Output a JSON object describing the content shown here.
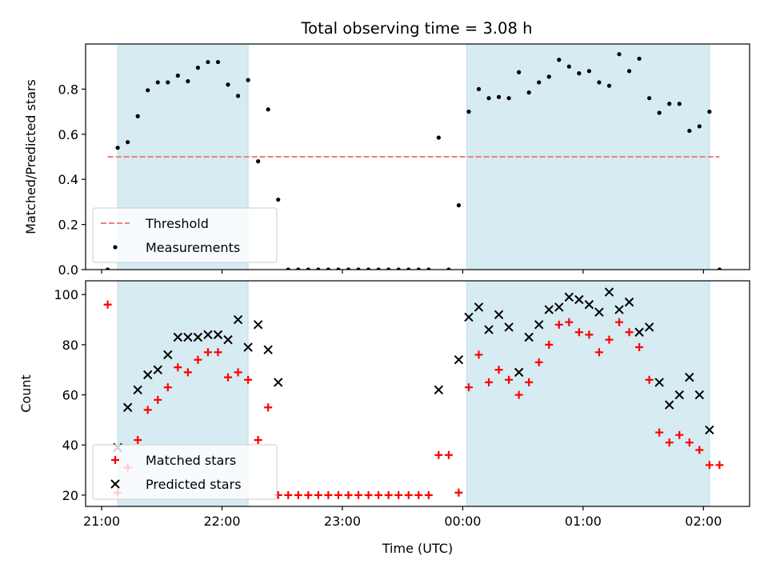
{
  "figure": {
    "title": "Total observing time = 3.08 h"
  },
  "chart_data": [
    {
      "type": "scatter",
      "name": "ratio-panel",
      "ylabel": "Matched/Predicted stars",
      "xlabel": "",
      "ylim": [
        0,
        1.0
      ],
      "xlim": [
        "20:52",
        "02:23"
      ],
      "x_axis": "time (UTC)",
      "yticks": [
        0.0,
        0.2,
        0.4,
        0.6,
        0.8
      ],
      "ytick_labels": [
        "0.0",
        "0.2",
        "0.4",
        "0.6",
        "0.8"
      ],
      "legend_placement": "lower-left",
      "shaded_intervals": [
        [
          "21:08",
          "22:13"
        ],
        [
          "00:02",
          "02:03"
        ]
      ],
      "shade_color": "#add8e6",
      "threshold": {
        "label": "Threshold",
        "value": 0.5,
        "x_range": [
          "21:03",
          "02:08"
        ],
        "color": "#f08080",
        "style": "dashed"
      },
      "series": [
        {
          "name": "Measurements",
          "color": "#000000",
          "marker": "dot",
          "points": [
            [
              "21:03",
              0.0
            ],
            [
              "21:08",
              0.54
            ],
            [
              "21:13",
              0.565
            ],
            [
              "21:18",
              0.68
            ],
            [
              "21:23",
              0.795
            ],
            [
              "21:28",
              0.83
            ],
            [
              "21:33",
              0.83
            ],
            [
              "21:38",
              0.86
            ],
            [
              "21:43",
              0.835
            ],
            [
              "21:48",
              0.895
            ],
            [
              "21:53",
              0.92
            ],
            [
              "21:58",
              0.92
            ],
            [
              "22:03",
              0.82
            ],
            [
              "22:08",
              0.77
            ],
            [
              "22:13",
              0.84
            ],
            [
              "22:18",
              0.48
            ],
            [
              "22:23",
              0.71
            ],
            [
              "22:28",
              0.31
            ],
            [
              "22:33",
              0.0
            ],
            [
              "22:38",
              0.0
            ],
            [
              "22:43",
              0.0
            ],
            [
              "22:48",
              0.0
            ],
            [
              "22:53",
              0.0
            ],
            [
              "22:58",
              0.0
            ],
            [
              "23:03",
              0.0
            ],
            [
              "23:08",
              0.0
            ],
            [
              "23:13",
              0.0
            ],
            [
              "23:18",
              0.0
            ],
            [
              "23:23",
              0.0
            ],
            [
              "23:28",
              0.0
            ],
            [
              "23:33",
              0.0
            ],
            [
              "23:38",
              0.0
            ],
            [
              "23:43",
              0.0
            ],
            [
              "23:48",
              0.585
            ],
            [
              "23:53",
              0.0
            ],
            [
              "23:58",
              0.285
            ],
            [
              "00:03",
              0.7
            ],
            [
              "00:08",
              0.8
            ],
            [
              "00:13",
              0.76
            ],
            [
              "00:18",
              0.765
            ],
            [
              "00:23",
              0.76
            ],
            [
              "00:28",
              0.875
            ],
            [
              "00:33",
              0.785
            ],
            [
              "00:38",
              0.83
            ],
            [
              "00:43",
              0.855
            ],
            [
              "00:48",
              0.93
            ],
            [
              "00:53",
              0.9
            ],
            [
              "00:58",
              0.87
            ],
            [
              "01:03",
              0.88
            ],
            [
              "01:08",
              0.83
            ],
            [
              "01:13",
              0.815
            ],
            [
              "01:18",
              0.955
            ],
            [
              "01:23",
              0.88
            ],
            [
              "01:28",
              0.935
            ],
            [
              "01:33",
              0.76
            ],
            [
              "01:38",
              0.695
            ],
            [
              "01:43",
              0.735
            ],
            [
              "01:48",
              0.735
            ],
            [
              "01:53",
              0.615
            ],
            [
              "01:58",
              0.635
            ],
            [
              "02:03",
              0.7
            ],
            [
              "02:08",
              0.0
            ]
          ]
        }
      ]
    },
    {
      "type": "scatter",
      "name": "count-panel",
      "ylabel": "Count",
      "xlabel": "Time (UTC)",
      "ylim": [
        15.5,
        105.5
      ],
      "xlim": [
        "20:52",
        "02:23"
      ],
      "x_axis": "time (UTC)",
      "xticks": [
        "21:00",
        "22:00",
        "23:00",
        "00:00",
        "01:00",
        "02:00"
      ],
      "xtick_labels": [
        "21:00",
        "22:00",
        "23:00",
        "00:00",
        "01:00",
        "02:00"
      ],
      "yticks": [
        20,
        40,
        60,
        80,
        100
      ],
      "ytick_labels": [
        "20",
        "40",
        "60",
        "80",
        "100"
      ],
      "legend_placement": "lower-left",
      "shaded_intervals": [
        [
          "21:08",
          "22:13"
        ],
        [
          "00:02",
          "02:03"
        ]
      ],
      "shade_color": "#add8e6",
      "series": [
        {
          "name": "Matched stars",
          "color": "#ff0000",
          "marker": "plus",
          "points": [
            [
              "21:03",
              96
            ],
            [
              "21:08",
              21
            ],
            [
              "21:13",
              31
            ],
            [
              "21:18",
              42
            ],
            [
              "21:23",
              54
            ],
            [
              "21:28",
              58
            ],
            [
              "21:33",
              63
            ],
            [
              "21:38",
              71
            ],
            [
              "21:43",
              69
            ],
            [
              "21:48",
              74
            ],
            [
              "21:53",
              77
            ],
            [
              "21:58",
              77
            ],
            [
              "22:03",
              67
            ],
            [
              "22:08",
              69
            ],
            [
              "22:13",
              66
            ],
            [
              "22:18",
              42
            ],
            [
              "22:23",
              55
            ],
            [
              "22:28",
              20
            ],
            [
              "22:33",
              20
            ],
            [
              "22:38",
              20
            ],
            [
              "22:43",
              20
            ],
            [
              "22:48",
              20
            ],
            [
              "22:53",
              20
            ],
            [
              "22:58",
              20
            ],
            [
              "23:03",
              20
            ],
            [
              "23:08",
              20
            ],
            [
              "23:13",
              20
            ],
            [
              "23:18",
              20
            ],
            [
              "23:23",
              20
            ],
            [
              "23:28",
              20
            ],
            [
              "23:33",
              20
            ],
            [
              "23:38",
              20
            ],
            [
              "23:43",
              20
            ],
            [
              "23:48",
              36
            ],
            [
              "23:53",
              36
            ],
            [
              "23:58",
              21
            ],
            [
              "00:03",
              63
            ],
            [
              "00:08",
              76
            ],
            [
              "00:13",
              65
            ],
            [
              "00:18",
              70
            ],
            [
              "00:23",
              66
            ],
            [
              "00:28",
              60
            ],
            [
              "00:33",
              65
            ],
            [
              "00:38",
              73
            ],
            [
              "00:43",
              80
            ],
            [
              "00:48",
              88
            ],
            [
              "00:53",
              89
            ],
            [
              "00:58",
              85
            ],
            [
              "01:03",
              84
            ],
            [
              "01:08",
              77
            ],
            [
              "01:13",
              82
            ],
            [
              "01:18",
              89
            ],
            [
              "01:23",
              85
            ],
            [
              "01:28",
              79
            ],
            [
              "01:33",
              66
            ],
            [
              "01:38",
              45
            ],
            [
              "01:43",
              41
            ],
            [
              "01:48",
              44
            ],
            [
              "01:53",
              41
            ],
            [
              "01:58",
              38
            ],
            [
              "02:03",
              32
            ],
            [
              "02:08",
              32
            ]
          ]
        },
        {
          "name": "Predicted stars",
          "color": "#000000",
          "marker": "cross",
          "points": [
            [
              "21:08",
              39
            ],
            [
              "21:13",
              55
            ],
            [
              "21:18",
              62
            ],
            [
              "21:23",
              68
            ],
            [
              "21:28",
              70
            ],
            [
              "21:33",
              76
            ],
            [
              "21:38",
              83
            ],
            [
              "21:43",
              83
            ],
            [
              "21:48",
              83
            ],
            [
              "21:53",
              84
            ],
            [
              "21:58",
              84
            ],
            [
              "22:03",
              82
            ],
            [
              "22:08",
              90
            ],
            [
              "22:13",
              79
            ],
            [
              "22:18",
              88
            ],
            [
              "22:23",
              78
            ],
            [
              "22:28",
              65
            ],
            [
              "23:48",
              62
            ],
            [
              "23:58",
              74
            ],
            [
              "00:03",
              91
            ],
            [
              "00:08",
              95
            ],
            [
              "00:13",
              86
            ],
            [
              "00:18",
              92
            ],
            [
              "00:23",
              87
            ],
            [
              "00:28",
              69
            ],
            [
              "00:33",
              83
            ],
            [
              "00:38",
              88
            ],
            [
              "00:43",
              94
            ],
            [
              "00:48",
              95
            ],
            [
              "00:53",
              99
            ],
            [
              "00:58",
              98
            ],
            [
              "01:03",
              96
            ],
            [
              "01:08",
              93
            ],
            [
              "01:13",
              101
            ],
            [
              "01:18",
              94
            ],
            [
              "01:23",
              97
            ],
            [
              "01:28",
              85
            ],
            [
              "01:33",
              87
            ],
            [
              "01:38",
              65
            ],
            [
              "01:43",
              56
            ],
            [
              "01:48",
              60
            ],
            [
              "01:53",
              67
            ],
            [
              "01:58",
              60
            ],
            [
              "02:03",
              46
            ]
          ]
        }
      ]
    }
  ]
}
